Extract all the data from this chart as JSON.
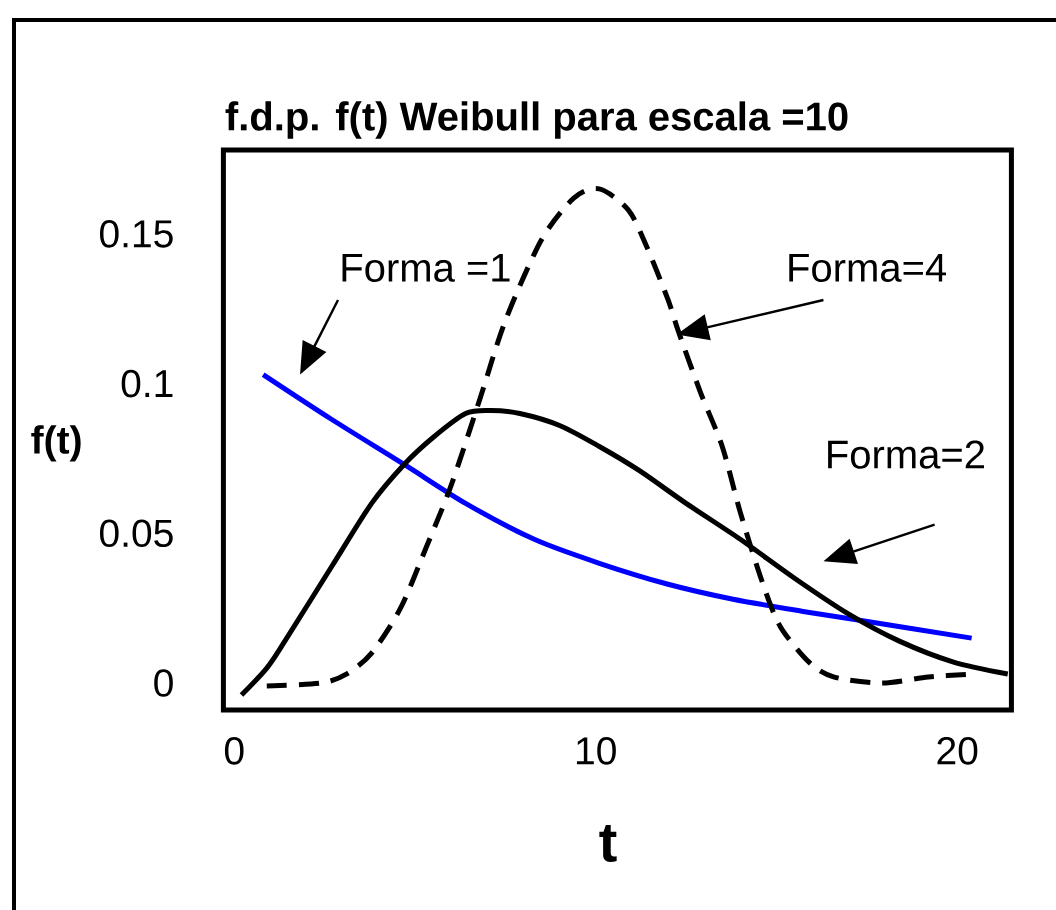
{
  "chart_data": {
    "type": "line",
    "title": "f.d.p. f(t) Weibull para escala =10",
    "xlabel": "t",
    "ylabel": "f(t)",
    "xlim": [
      -0.3,
      21.5
    ],
    "xticks": [
      0,
      10,
      20
    ],
    "ylim": [
      -0.009,
      0.178
    ],
    "yticks": [
      0,
      0.05,
      0.1,
      0.15
    ],
    "marker": "none",
    "series": [
      {
        "color": "#0000ff",
        "line_style": "solid",
        "x": [
          0.8,
          2.7,
          4.7,
          6.4,
          8.3,
          10.1,
          12,
          13.8,
          15.7,
          17.3,
          20.4
        ],
        "values": [
          0.103,
          0.088,
          0.073,
          0.06,
          0.048,
          0.04,
          0.033,
          0.028,
          0.024,
          0.021,
          0.015
        ]
      },
      {
        "color": "#000000",
        "line_style": "solid",
        "x": [
          0.2,
          0.9,
          1.4,
          2.7,
          3.8,
          4.7,
          5.5,
          6.4,
          7.1,
          7.9,
          9,
          10.1,
          11.2,
          12.5,
          14,
          15.5,
          17,
          18.4,
          19.9,
          21.4
        ],
        "values": [
          -0.004,
          0.005,
          0.014,
          0.039,
          0.06,
          0.073,
          0.082,
          0.09,
          0.091,
          0.09,
          0.086,
          0.079,
          0.071,
          0.06,
          0.048,
          0.035,
          0.023,
          0.014,
          0.007,
          0.003
        ]
      },
      {
        "color": "#000000",
        "line_style": "dashed",
        "x": [
          0.9,
          2.4,
          3.1,
          3.8,
          4.6,
          5.3,
          6,
          6.8,
          7.5,
          8.5,
          9.4,
          10.1,
          10.9,
          11.4,
          12,
          12.3,
          12.9,
          13.5,
          14,
          14.6,
          15.1,
          15.9,
          16.6,
          17.9,
          19.2,
          20.4
        ],
        "values": [
          -0.001,
          0,
          0.003,
          0.01,
          0.025,
          0.045,
          0.066,
          0.095,
          0.121,
          0.148,
          0.162,
          0.165,
          0.158,
          0.146,
          0.128,
          0.117,
          0.097,
          0.079,
          0.057,
          0.034,
          0.019,
          0.007,
          0.002,
          0,
          0.002,
          0.003
        ]
      }
    ],
    "annotations": [
      "Forma =1",
      "Forma=4",
      "Forma=2"
    ]
  }
}
